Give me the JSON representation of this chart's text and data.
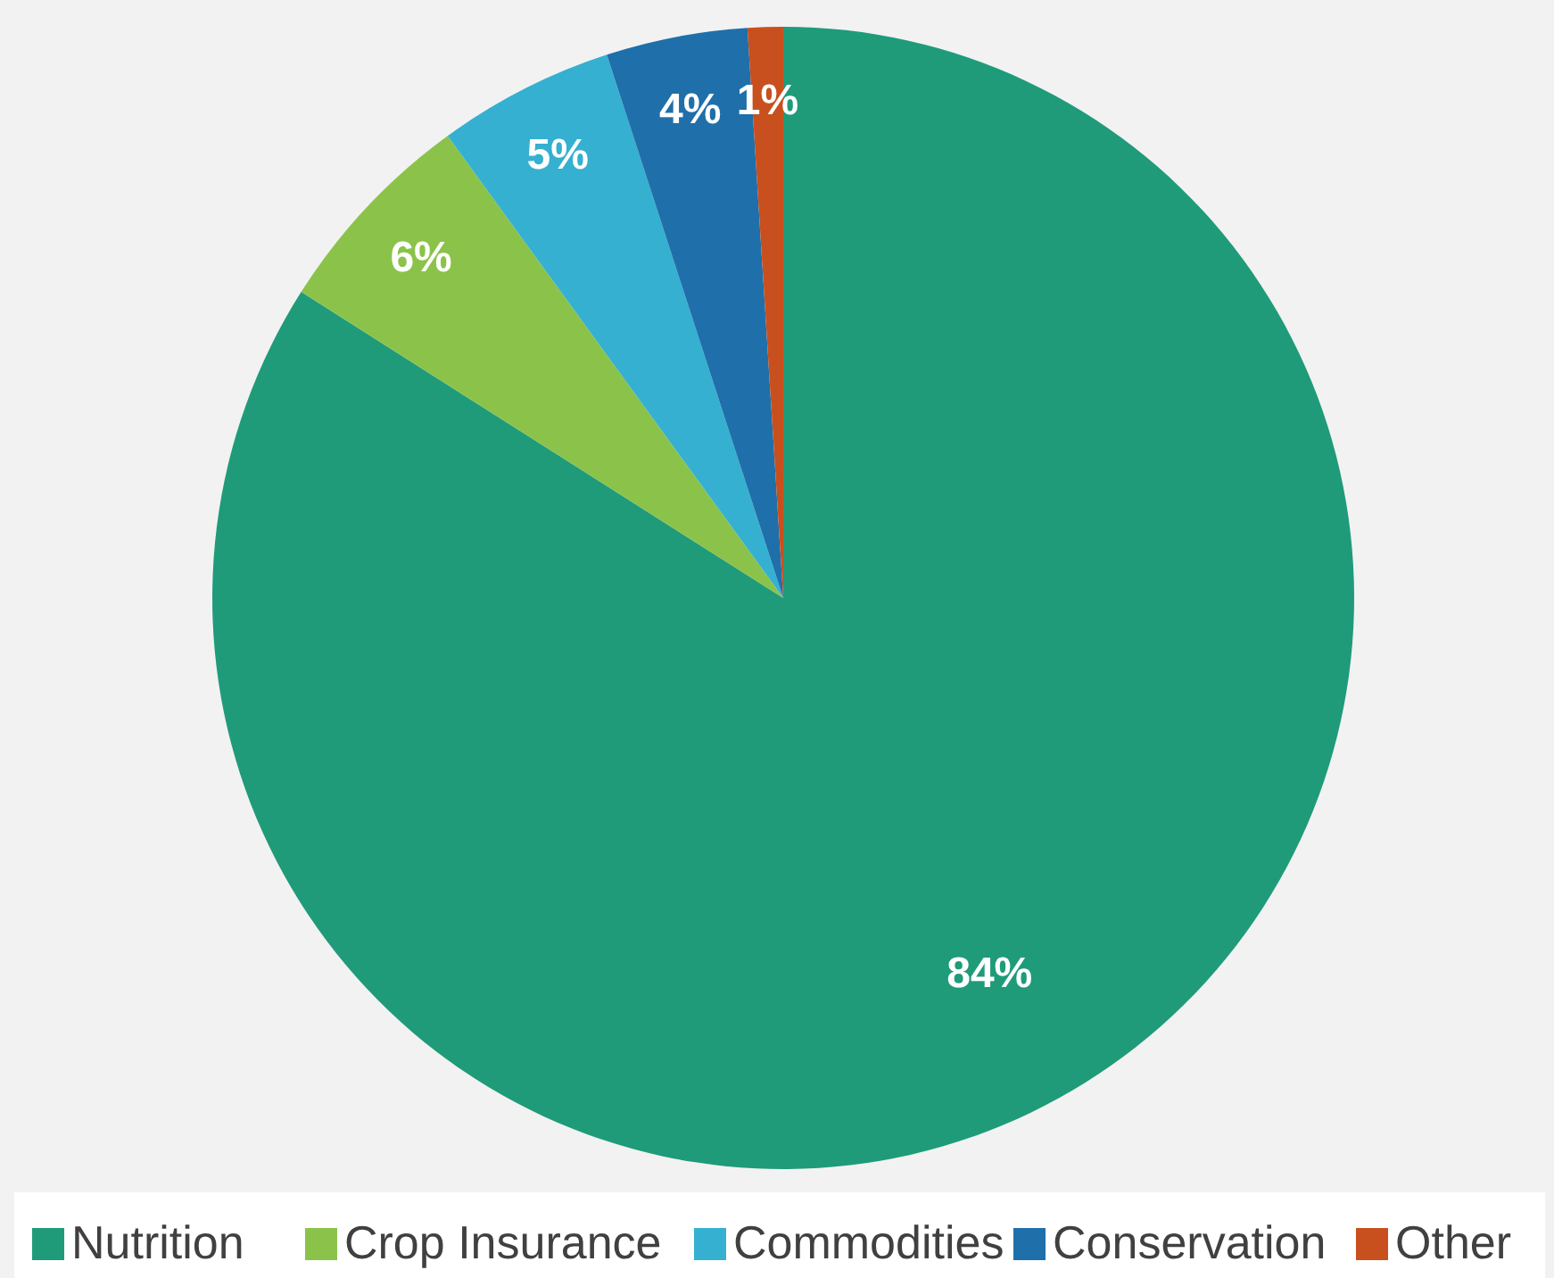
{
  "chart_data": {
    "type": "pie",
    "categories": [
      "Nutrition",
      "Crop Insurance",
      "Commodities",
      "Conservation",
      "Other"
    ],
    "values": [
      84,
      6,
      5,
      4,
      1
    ],
    "colors": [
      "#1f9b7a",
      "#8bc34a",
      "#35b0d0",
      "#1f6faa",
      "#c8501e"
    ],
    "value_labels": [
      "84%",
      "6%",
      "5%",
      "4%",
      "1%"
    ],
    "legend": "bottom"
  }
}
